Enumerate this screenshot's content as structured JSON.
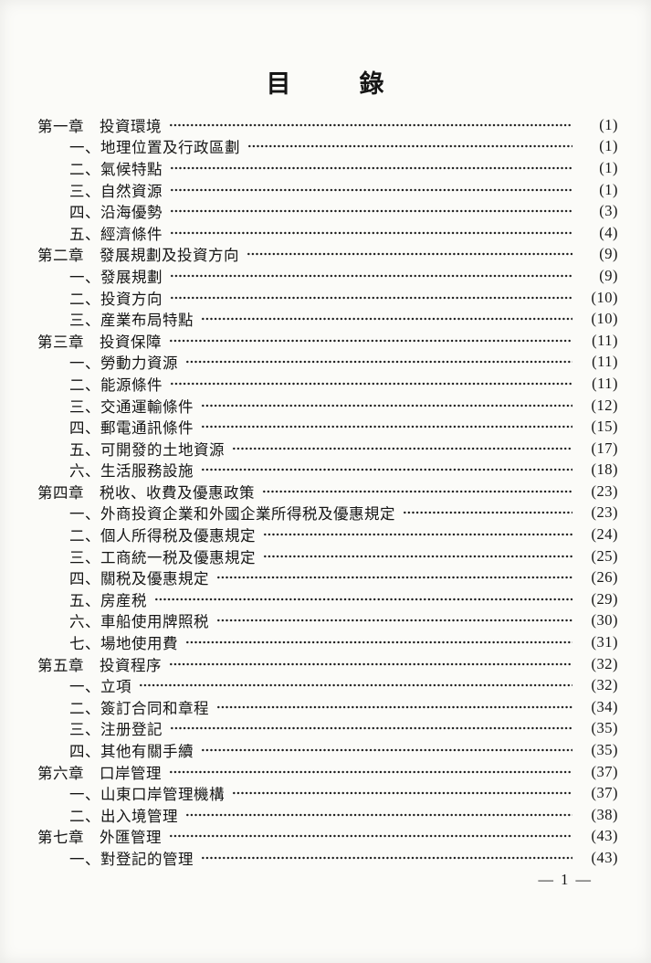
{
  "page": {
    "title_left": "目",
    "title_right": "錄",
    "footer": "— 1 —"
  },
  "toc": {
    "entries": [
      {
        "level": "chapter",
        "text": "第一章　投資環境",
        "page": "(1)"
      },
      {
        "level": "item",
        "text": "一、地理位置及行政區劃",
        "page": "(1)"
      },
      {
        "level": "item",
        "text": "二、氣候特點",
        "page": "(1)"
      },
      {
        "level": "item",
        "text": "三、自然資源",
        "page": "(1)"
      },
      {
        "level": "item",
        "text": "四、沿海優勢",
        "page": "(3)"
      },
      {
        "level": "item",
        "text": "五、經濟條件",
        "page": "(4)"
      },
      {
        "level": "chapter",
        "text": "第二章　發展規劃及投資方向",
        "page": "(9)"
      },
      {
        "level": "item",
        "text": "一、發展規劃",
        "page": "(9)"
      },
      {
        "level": "item",
        "text": "二、投資方向",
        "page": "(10)"
      },
      {
        "level": "item",
        "text": "三、産業布局特點",
        "page": "(10)"
      },
      {
        "level": "chapter",
        "text": "第三章　投資保障",
        "page": "(11)"
      },
      {
        "level": "item",
        "text": "一、勞動力資源",
        "page": "(11)"
      },
      {
        "level": "item",
        "text": "二、能源條件",
        "page": "(11)"
      },
      {
        "level": "item",
        "text": "三、交通運輸條件",
        "page": "(12)"
      },
      {
        "level": "item",
        "text": "四、郵電通訊條件",
        "page": "(15)"
      },
      {
        "level": "item",
        "text": "五、可開發的土地資源",
        "page": "(17)"
      },
      {
        "level": "item",
        "text": "六、生活服務設施",
        "page": "(18)"
      },
      {
        "level": "chapter",
        "text": "第四章　税收、收費及優惠政策",
        "page": "(23)"
      },
      {
        "level": "item",
        "text": "一、外商投資企業和外國企業所得税及優惠規定",
        "page": "(23)"
      },
      {
        "level": "item",
        "text": "二、個人所得税及優惠規定",
        "page": "(24)"
      },
      {
        "level": "item",
        "text": "三、工商統一税及優惠規定",
        "page": "(25)"
      },
      {
        "level": "item",
        "text": "四、關税及優惠規定",
        "page": "(26)"
      },
      {
        "level": "item",
        "text": "五、房産税",
        "page": "(29)"
      },
      {
        "level": "item",
        "text": "六、車船使用牌照税",
        "page": "(30)"
      },
      {
        "level": "item",
        "text": "七、場地使用費",
        "page": "(31)"
      },
      {
        "level": "chapter",
        "text": "第五章　投資程序",
        "page": "(32)"
      },
      {
        "level": "item",
        "text": "一、立項",
        "page": "(32)"
      },
      {
        "level": "item",
        "text": "二、簽訂合同和章程",
        "page": "(34)"
      },
      {
        "level": "item",
        "text": "三、注册登記",
        "page": "(35)"
      },
      {
        "level": "item",
        "text": "四、其他有關手續",
        "page": "(35)"
      },
      {
        "level": "chapter",
        "text": "第六章　口岸管理",
        "page": "(37)"
      },
      {
        "level": "item",
        "text": "一、山東口岸管理機構",
        "page": "(37)"
      },
      {
        "level": "item",
        "text": "二、出入境管理",
        "page": "(38)"
      },
      {
        "level": "chapter",
        "text": "第七章　外匯管理",
        "page": "(43)"
      },
      {
        "level": "item",
        "text": "一、對登記的管理",
        "page": "(43)"
      }
    ]
  }
}
